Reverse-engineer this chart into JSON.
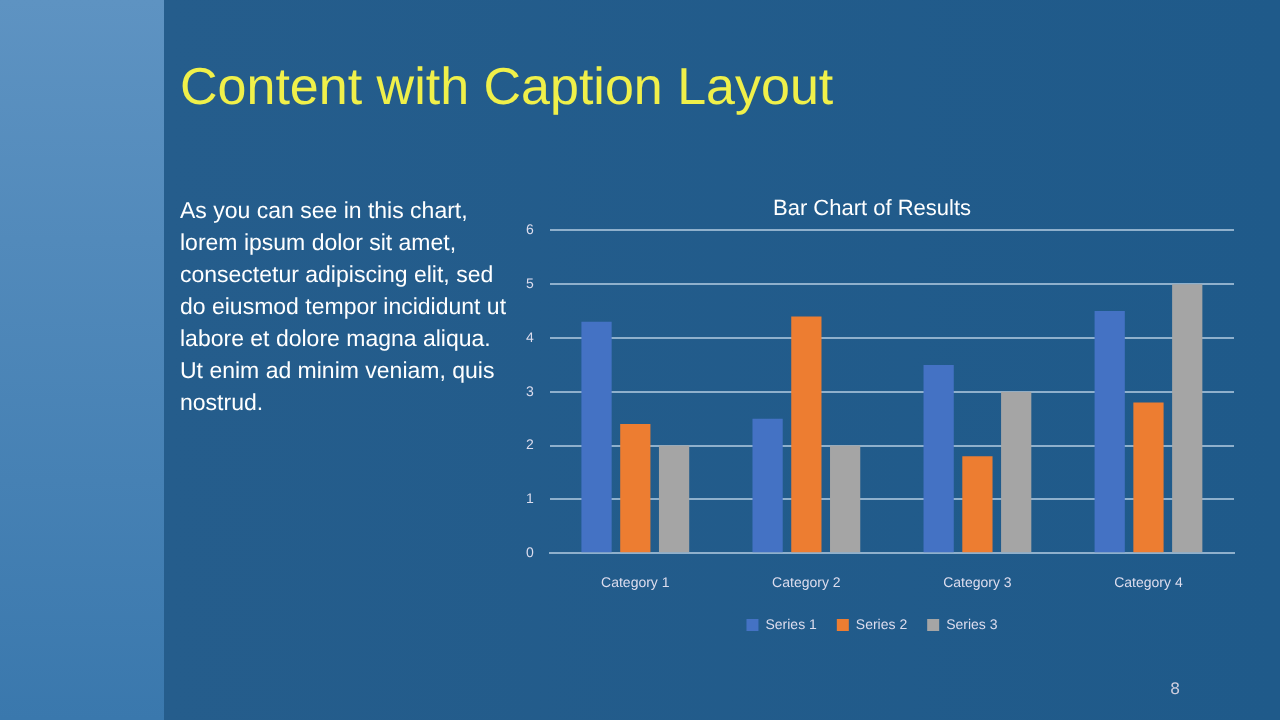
{
  "chart_data": {
    "type": "bar",
    "title": "Content with Caption Layout",
    "subtitle": "Bar Chart of Results",
    "categories": [
      "Category 1",
      "Category 2",
      "Category 3",
      "Category 4"
    ],
    "series": [
      {
        "name": "Series 1",
        "color": "#4472c4",
        "values": [
          4.3,
          2.5,
          3.5,
          4.5
        ]
      },
      {
        "name": "Series 2",
        "color": "#ed7d31",
        "values": [
          2.4,
          4.4,
          1.8,
          2.8
        ]
      },
      {
        "name": "Series 3",
        "color": "#a5a5a5",
        "values": [
          2,
          2,
          3,
          5
        ]
      }
    ],
    "ylim": [
      0,
      6
    ],
    "yticks": [
      0,
      1,
      2,
      3,
      4,
      5,
      6
    ],
    "grid": "y",
    "legend": "bottom",
    "annotations": [
      "As you can see in this chart, lorem ipsum dolor sit amet, consectetur adipiscing elit, sed do eiusmod tempor incididunt ut labore et dolore magna aliqua. Ut enim ad minim veniam, quis nostrud.",
      "8"
    ]
  }
}
